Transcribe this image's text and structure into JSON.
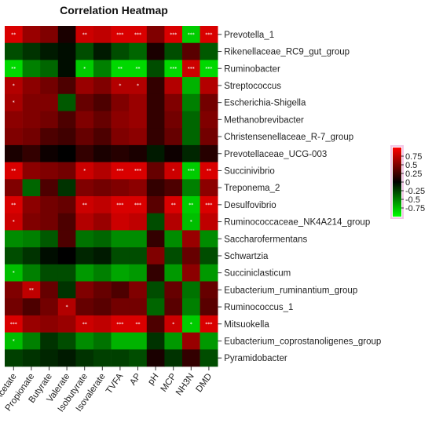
{
  "chart_data": {
    "type": "heatmap",
    "title": "Correlation Heatmap",
    "columns": [
      "Acetate",
      "Propionate",
      "Butyrate",
      "Valerate",
      "Isobutyrate",
      "Isovalerate",
      "TVFA",
      "AP",
      "pH",
      "MCP",
      "NH3N",
      "DMD"
    ],
    "rows": [
      "Prevotella_1",
      "Rikenellaceae_RC9_gut_group",
      "Ruminobacter",
      "Streptococcus",
      "Escherichia-Shigella",
      "Methanobrevibacter",
      "Christensenellaceae_R-7_group",
      "Prevotellaceae_UCG-003",
      "Succinivibrio",
      "Treponema_2",
      "Desulfovibrio",
      "Ruminococcaceae_NK4A214_group",
      "Saccharofermentans",
      "Schwartzia",
      "Succiniclasticum",
      "Eubacterium_ruminantium_group",
      "Ruminococcus_1",
      "Mitsuokella",
      "Eubacterium_coprostanoligenes_group",
      "Pyramidobacter"
    ],
    "values": [
      [
        0.85,
        0.6,
        0.5,
        0.1,
        0.8,
        0.75,
        0.85,
        0.85,
        0.5,
        0.85,
        -0.8,
        0.85
      ],
      [
        -0.3,
        -0.2,
        -0.1,
        -0.05,
        -0.3,
        -0.1,
        -0.3,
        -0.4,
        0.1,
        -0.3,
        0.35,
        -0.35
      ],
      [
        -0.85,
        -0.5,
        -0.4,
        -0.05,
        -0.8,
        -0.5,
        -0.85,
        -0.85,
        -0.3,
        -0.85,
        0.8,
        -0.85
      ],
      [
        0.7,
        0.55,
        0.45,
        0.3,
        0.6,
        0.5,
        0.7,
        0.7,
        0.2,
        0.7,
        -0.7,
        0.7
      ],
      [
        0.65,
        0.5,
        0.5,
        -0.35,
        0.4,
        0.3,
        0.5,
        0.6,
        0.2,
        0.5,
        -0.5,
        0.45
      ],
      [
        0.55,
        0.5,
        0.45,
        0.3,
        0.5,
        0.4,
        0.55,
        0.6,
        0.2,
        0.45,
        -0.4,
        0.5
      ],
      [
        0.5,
        0.45,
        0.3,
        0.25,
        0.4,
        0.3,
        0.5,
        0.55,
        0.2,
        0.4,
        -0.4,
        0.45
      ],
      [
        0.1,
        0.2,
        0.05,
        0.0,
        0.2,
        0.1,
        0.15,
        0.1,
        -0.1,
        0.05,
        -0.15,
        0.15
      ],
      [
        0.85,
        0.55,
        0.5,
        0.45,
        0.8,
        0.7,
        0.85,
        0.85,
        0.4,
        0.8,
        -0.8,
        0.85
      ],
      [
        0.5,
        -0.4,
        0.3,
        -0.2,
        0.5,
        0.45,
        0.5,
        0.55,
        0.2,
        0.3,
        -0.5,
        0.55
      ],
      [
        0.85,
        0.55,
        0.45,
        0.4,
        0.8,
        0.75,
        0.85,
        0.85,
        0.35,
        0.85,
        -0.8,
        0.85
      ],
      [
        0.8,
        0.5,
        0.45,
        0.3,
        0.7,
        0.6,
        0.8,
        0.75,
        -0.3,
        0.7,
        -0.75,
        0.75
      ],
      [
        -0.55,
        -0.5,
        -0.35,
        0.3,
        -0.45,
        -0.4,
        -0.55,
        -0.55,
        0.2,
        -0.55,
        0.6,
        -0.55
      ],
      [
        -0.3,
        -0.2,
        -0.05,
        0.0,
        -0.15,
        -0.1,
        -0.3,
        -0.3,
        0.5,
        -0.3,
        0.4,
        -0.3
      ],
      [
        -0.75,
        -0.5,
        -0.3,
        -0.3,
        -0.6,
        -0.5,
        -0.65,
        -0.6,
        0.2,
        -0.6,
        0.55,
        -0.6
      ],
      [
        0.5,
        0.75,
        0.4,
        -0.2,
        0.5,
        0.4,
        0.3,
        0.5,
        -0.3,
        0.4,
        -0.45,
        0.4
      ],
      [
        0.45,
        0.3,
        0.45,
        0.7,
        0.4,
        0.35,
        0.45,
        0.45,
        -0.4,
        0.35,
        -0.5,
        0.35
      ],
      [
        0.85,
        0.6,
        0.55,
        0.6,
        0.8,
        0.75,
        0.85,
        0.85,
        0.3,
        0.8,
        -0.8,
        0.85
      ],
      [
        -0.75,
        -0.5,
        -0.2,
        -0.3,
        -0.55,
        -0.45,
        -0.7,
        -0.7,
        -0.2,
        -0.6,
        0.6,
        -0.6
      ],
      [
        -0.25,
        -0.2,
        -0.15,
        -0.1,
        -0.2,
        -0.25,
        -0.25,
        -0.3,
        0.1,
        -0.2,
        0.2,
        -0.3
      ]
    ],
    "significance": [
      [
        "**",
        "",
        "",
        "",
        "**",
        "",
        "***",
        "***",
        "",
        "***",
        "***",
        "***"
      ],
      [
        "",
        "",
        "",
        "",
        "",
        "",
        "",
        "",
        "",
        "",
        "",
        ""
      ],
      [
        "**",
        "",
        "",
        "",
        "*",
        "",
        "**",
        "**",
        "",
        "***",
        "***",
        "***"
      ],
      [
        "*",
        "",
        "",
        "",
        "",
        "",
        "*",
        "*",
        "",
        "",
        "",
        ""
      ],
      [
        "*",
        "",
        "",
        "",
        "",
        "",
        "",
        "",
        "",
        "",
        "",
        ""
      ],
      [
        "",
        "",
        "",
        "",
        "",
        "",
        "",
        "",
        "",
        "",
        "",
        ""
      ],
      [
        "",
        "",
        "",
        "",
        "",
        "",
        "",
        "",
        "",
        "",
        "",
        ""
      ],
      [
        "",
        "",
        "",
        "",
        "",
        "",
        "",
        "",
        "",
        "",
        "",
        ""
      ],
      [
        "**",
        "",
        "",
        "",
        "*",
        "",
        "***",
        "***",
        "",
        "*",
        "***",
        "**"
      ],
      [
        "",
        "",
        "",
        "",
        "",
        "",
        "",
        "",
        "",
        "",
        "",
        ""
      ],
      [
        "**",
        "",
        "",
        "",
        "**",
        "",
        "***",
        "***",
        "",
        "**",
        "**",
        "***"
      ],
      [
        "*",
        "",
        "",
        "",
        "",
        "",
        "",
        "",
        "",
        "",
        "*",
        ""
      ],
      [
        "",
        "",
        "",
        "",
        "",
        "",
        "",
        "",
        "",
        "",
        "",
        ""
      ],
      [
        "",
        "",
        "",
        "",
        "",
        "",
        "",
        "",
        "",
        "",
        "",
        ""
      ],
      [
        "*",
        "",
        "",
        "",
        "",
        "",
        "",
        "",
        "",
        "",
        "",
        ""
      ],
      [
        "",
        "**",
        "",
        "",
        "",
        "",
        "",
        "",
        "",
        "",
        "",
        ""
      ],
      [
        "",
        "",
        "",
        "*",
        "",
        "",
        "",
        "",
        "",
        "",
        "",
        ""
      ],
      [
        "***",
        "",
        "",
        "",
        "**",
        "",
        "***",
        "**",
        "",
        "*",
        "*",
        "***"
      ],
      [
        "*",
        "",
        "",
        "",
        "",
        "",
        "",
        "",
        "",
        "",
        "",
        ""
      ],
      [
        "",
        "",
        "",
        "",
        "",
        "",
        "",
        "",
        "",
        "",
        "",
        ""
      ]
    ],
    "value_range": [
      -1,
      1
    ],
    "legend": {
      "position": "right",
      "ticks": [
        0.75,
        0.5,
        0.25,
        0,
        -0.25,
        -0.5,
        -0.75
      ],
      "tick_labels": [
        "0.75",
        "0.5",
        "0.25",
        "0",
        "-0.25",
        "-0.5",
        "-0.75"
      ]
    },
    "color_scale": {
      "positive": "#ff0000",
      "zero": "#000000",
      "negative": "#00ff00"
    }
  }
}
